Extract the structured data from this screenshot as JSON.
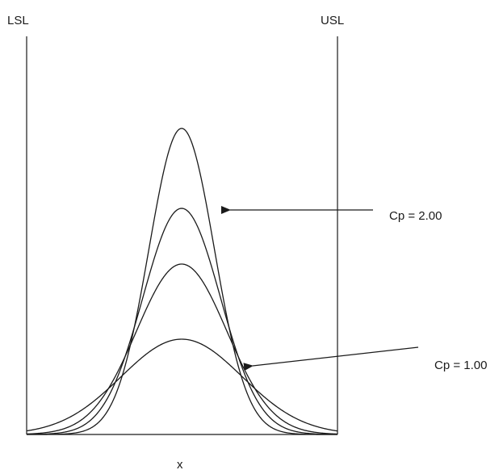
{
  "chart_data": {
    "type": "line",
    "title": "",
    "xlabel": "x",
    "ylabel": "",
    "spec_limits": {
      "lower": "LSL",
      "upper": "USL"
    },
    "annotations": [
      {
        "label": "Cp = 2.00"
      },
      {
        "label": "Cp = 1.00"
      }
    ],
    "series": [
      {
        "name": "",
        "values": []
      },
      {
        "name": "",
        "values": []
      },
      {
        "name": "",
        "values": []
      },
      {
        "name": "",
        "values": []
      }
    ],
    "grid": false,
    "legend": "none"
  },
  "colors": {
    "line": "#1a1a1a",
    "background": "#ffffff"
  }
}
